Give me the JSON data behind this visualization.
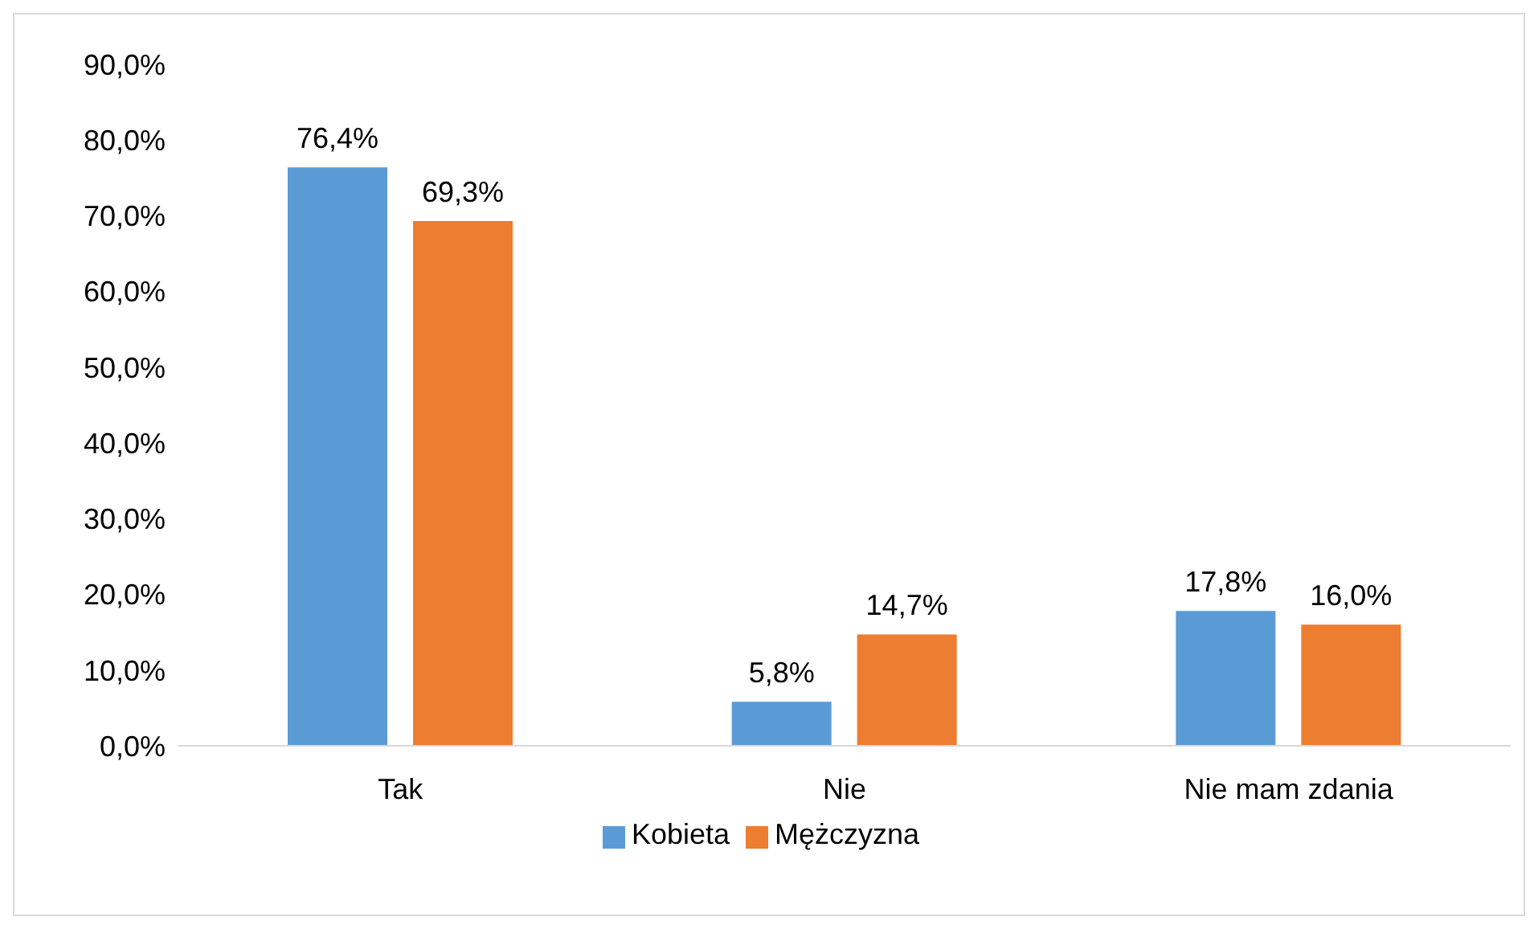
{
  "chart_data": {
    "type": "bar",
    "categories": [
      "Tak",
      "Nie",
      "Nie mam zdania"
    ],
    "series": [
      {
        "name": "Kobieta",
        "color": "#5b9bd5",
        "values": [
          76.4,
          5.8,
          17.8
        ],
        "value_labels": [
          "76,4%",
          "5,8%",
          "17,8%"
        ]
      },
      {
        "name": "Mężczyzna",
        "color": "#ed7d31",
        "values": [
          69.3,
          14.7,
          16.0
        ],
        "value_labels": [
          "69,3%",
          "14,7%",
          "16,0%"
        ]
      }
    ],
    "ylim": [
      0,
      90
    ],
    "yticks": [
      {
        "value": 0,
        "label": "0,0%"
      },
      {
        "value": 10,
        "label": "10,0%"
      },
      {
        "value": 20,
        "label": "20,0%"
      },
      {
        "value": 30,
        "label": "30,0%"
      },
      {
        "value": 40,
        "label": "40,0%"
      },
      {
        "value": 50,
        "label": "50,0%"
      },
      {
        "value": 60,
        "label": "60,0%"
      },
      {
        "value": 70,
        "label": "70,0%"
      },
      {
        "value": 80,
        "label": "80,0%"
      },
      {
        "value": 90,
        "label": "90,0%"
      }
    ],
    "grid": false,
    "legend": "bottom"
  }
}
